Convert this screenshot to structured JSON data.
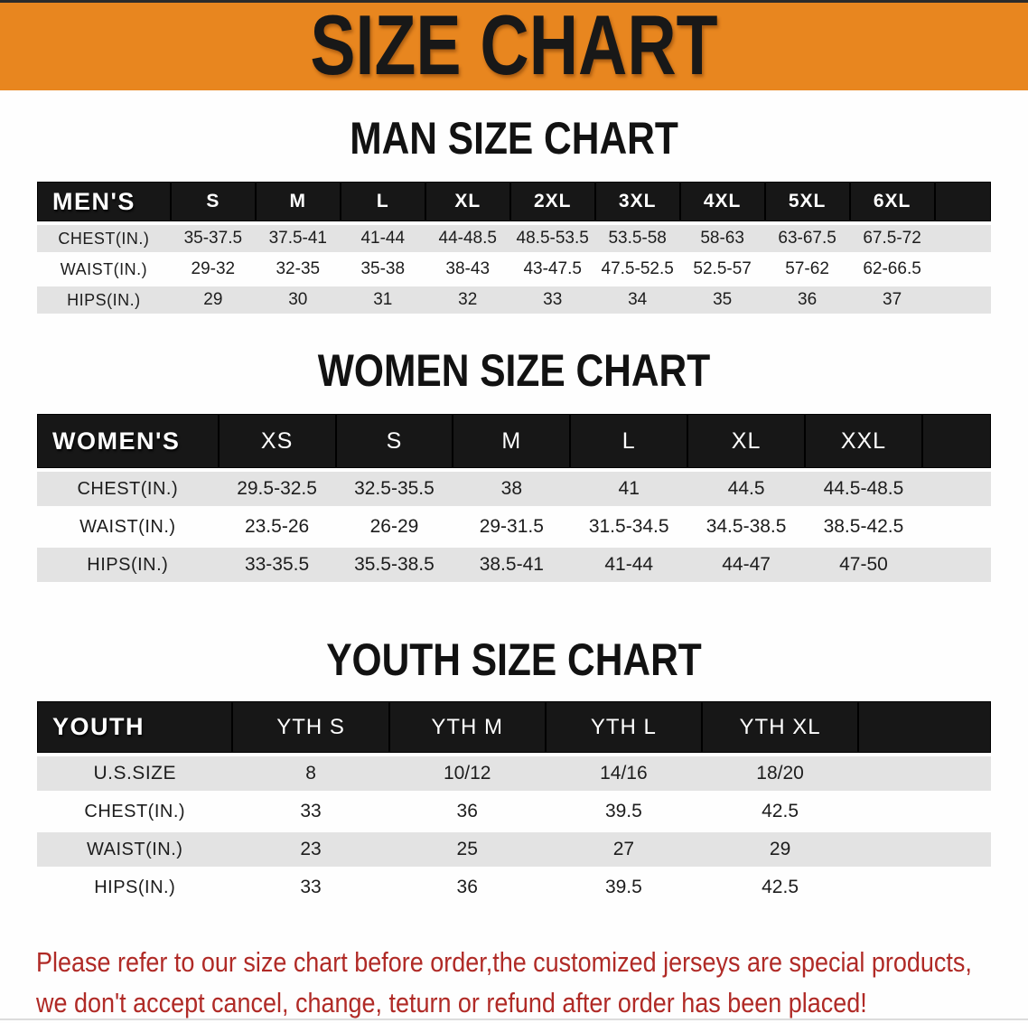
{
  "banner": {
    "title": "SIZE CHART",
    "bg_color": "#e8861f"
  },
  "sections": [
    {
      "key": "men",
      "title": "MAN SIZE CHART",
      "header_label": "MEN'S",
      "columns": [
        "S",
        "M",
        "L",
        "XL",
        "2XL",
        "3XL",
        "4XL",
        "5XL",
        "6XL"
      ],
      "rows": [
        {
          "label": "CHEST(IN.)",
          "values": [
            "35-37.5",
            "37.5-41",
            "41-44",
            "44-48.5",
            "48.5-53.5",
            "53.5-58",
            "58-63",
            "63-67.5",
            "67.5-72"
          ]
        },
        {
          "label": "WAIST(IN.)",
          "values": [
            "29-32",
            "32-35",
            "35-38",
            "38-43",
            "43-47.5",
            "47.5-52.5",
            "52.5-57",
            "57-62",
            "62-66.5"
          ]
        },
        {
          "label": "HIPS(IN.)",
          "values": [
            "29",
            "30",
            "31",
            "32",
            "33",
            "34",
            "35",
            "36",
            "37"
          ]
        }
      ]
    },
    {
      "key": "women",
      "title": "WOMEN SIZE CHART",
      "header_label": "WOMEN'S",
      "columns": [
        "XS",
        "S",
        "M",
        "L",
        "XL",
        "XXL"
      ],
      "rows": [
        {
          "label": "CHEST(IN.)",
          "values": [
            "29.5-32.5",
            "32.5-35.5",
            "38",
            "41",
            "44.5",
            "44.5-48.5"
          ]
        },
        {
          "label": "WAIST(IN.)",
          "values": [
            "23.5-26",
            "26-29",
            "29-31.5",
            "31.5-34.5",
            "34.5-38.5",
            "38.5-42.5"
          ]
        },
        {
          "label": "HIPS(IN.)",
          "values": [
            "33-35.5",
            "35.5-38.5",
            "38.5-41",
            "41-44",
            "44-47",
            "47-50"
          ]
        }
      ]
    },
    {
      "key": "youth",
      "title": "YOUTH SIZE CHART",
      "header_label": "YOUTH",
      "columns": [
        "YTH S",
        "YTH M",
        "YTH L",
        "YTH XL"
      ],
      "rows": [
        {
          "label": "U.S.SIZE",
          "values": [
            "8",
            "10/12",
            "14/16",
            "18/20"
          ]
        },
        {
          "label": "CHEST(IN.)",
          "values": [
            "33",
            "36",
            "39.5",
            "42.5"
          ]
        },
        {
          "label": "WAIST(IN.)",
          "values": [
            "23",
            "25",
            "27",
            "29"
          ]
        },
        {
          "label": "HIPS(IN.)",
          "values": [
            "33",
            "36",
            "39.5",
            "42.5"
          ]
        }
      ]
    }
  ],
  "disclaimer": {
    "line1": "Please refer to our size chart before order,the customized jerseys are special products,",
    "line2": "we don't accept cancel, change, teturn or refund after order has been placed!"
  },
  "colors": {
    "banner_bg": "#e8861f",
    "header_bar": "#171717",
    "row_shaded": "#e3e3e3",
    "title_color": "#121212",
    "disclaimer_red": "#b02a26"
  }
}
